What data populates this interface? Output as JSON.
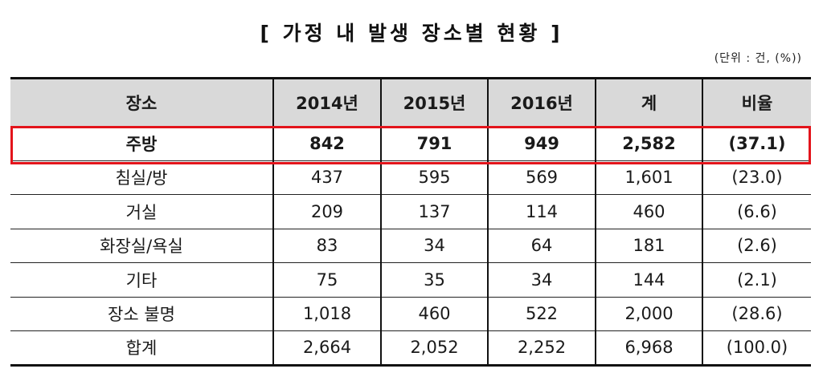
{
  "title": "[ 가정 내 발생 장소별 현황 ]",
  "unit_note": "(단위 : 건, (%))",
  "highlight_color": "#e3141b",
  "header_bg": "#d9d9d9",
  "table": {
    "headers": [
      "장소",
      "2014년",
      "2015년",
      "2016년",
      "계",
      "비율"
    ],
    "rows": [
      {
        "cells": [
          "주방",
          "842",
          "791",
          "949",
          "2,582",
          "(37.1)"
        ],
        "highlighted": true
      },
      {
        "cells": [
          "침실/방",
          "437",
          "595",
          "569",
          "1,601",
          "(23.0)"
        ]
      },
      {
        "cells": [
          "거실",
          "209",
          "137",
          "114",
          "460",
          "(6.6)"
        ]
      },
      {
        "cells": [
          "화장실/욕실",
          "83",
          "34",
          "64",
          "181",
          "(2.6)"
        ]
      },
      {
        "cells": [
          "기타",
          "75",
          "35",
          "34",
          "144",
          "(2.1)"
        ]
      },
      {
        "cells": [
          "장소 불명",
          "1,018",
          "460",
          "522",
          "2,000",
          "(28.6)"
        ]
      },
      {
        "cells": [
          "합계",
          "2,664",
          "2,052",
          "2,252",
          "6,968",
          "(100.0)"
        ]
      }
    ]
  }
}
